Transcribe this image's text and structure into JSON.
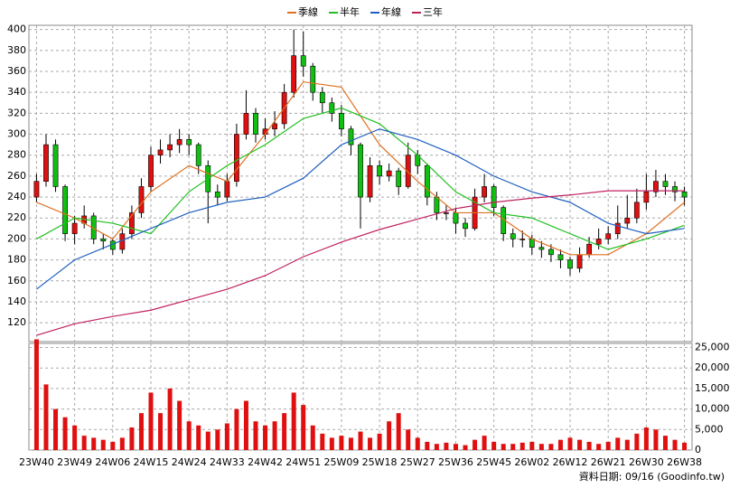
{
  "chart_data": [
    {
      "type": "candlestick",
      "xticks": [
        {
          "value": 0,
          "label": "23W40"
        },
        {
          "value": 4,
          "label": "23W49"
        },
        {
          "value": 8,
          "label": "24W06"
        },
        {
          "value": 12,
          "label": "24W15"
        },
        {
          "value": 16,
          "label": "24W24"
        },
        {
          "value": 20,
          "label": "24W33"
        },
        {
          "value": 24,
          "label": "24W42"
        },
        {
          "value": 28,
          "label": "24W51"
        },
        {
          "value": 32,
          "label": "25W09"
        },
        {
          "value": 36,
          "label": "25W18"
        },
        {
          "value": 40,
          "label": "25W27"
        },
        {
          "value": 44,
          "label": "25W36"
        },
        {
          "value": 48,
          "label": "25W45"
        },
        {
          "value": 52,
          "label": "26W02"
        },
        {
          "value": 56,
          "label": "26W12"
        },
        {
          "value": 60,
          "label": "26W21"
        },
        {
          "value": 64,
          "label": "26W30"
        },
        {
          "value": 68,
          "label": "26W38"
        }
      ],
      "xlim": [
        -0.8,
        68.8
      ],
      "ylim": [
        102,
        404
      ],
      "yticks": [
        120,
        140,
        160,
        180,
        200,
        220,
        240,
        260,
        280,
        300,
        320,
        340,
        360,
        380,
        400
      ],
      "grid": true,
      "up_color": "#e01010",
      "down_color": "#10c010",
      "open": [
        240,
        255,
        290,
        250,
        205,
        215,
        222,
        200,
        198,
        190,
        205,
        225,
        250,
        280,
        285,
        290,
        295,
        290,
        270,
        245,
        240,
        255,
        300,
        320,
        300,
        305,
        310,
        340,
        375,
        365,
        340,
        330,
        320,
        305,
        290,
        240,
        270,
        260,
        265,
        250,
        280,
        270,
        240,
        225,
        225,
        215,
        210,
        240,
        250,
        230,
        205,
        200,
        200,
        192,
        190,
        185,
        180,
        172,
        185,
        195,
        200,
        205,
        215,
        220,
        235,
        245,
        255,
        250,
        245
      ],
      "high": [
        262,
        300,
        295,
        252,
        222,
        232,
        225,
        205,
        200,
        210,
        232,
        258,
        288,
        295,
        300,
        305,
        300,
        292,
        275,
        252,
        262,
        310,
        342,
        325,
        315,
        322,
        348,
        400,
        398,
        368,
        345,
        335,
        328,
        308,
        292,
        278,
        275,
        272,
        268,
        292,
        285,
        272,
        245,
        232,
        230,
        220,
        248,
        262,
        252,
        232,
        210,
        208,
        204,
        198,
        195,
        190,
        183,
        192,
        202,
        210,
        212,
        232,
        242,
        248,
        262,
        266,
        262,
        255,
        250
      ],
      "low": [
        235,
        250,
        245,
        198,
        195,
        210,
        195,
        190,
        185,
        186,
        200,
        220,
        245,
        272,
        278,
        282,
        280,
        262,
        215,
        232,
        236,
        250,
        295,
        292,
        295,
        298,
        305,
        335,
        355,
        332,
        320,
        312,
        298,
        280,
        210,
        235,
        252,
        255,
        242,
        248,
        262,
        232,
        218,
        218,
        205,
        202,
        208,
        235,
        222,
        198,
        192,
        192,
        185,
        182,
        178,
        172,
        165,
        168,
        182,
        190,
        195,
        200,
        210,
        215,
        228,
        240,
        242,
        236,
        232
      ],
      "close": [
        255,
        290,
        250,
        205,
        215,
        222,
        200,
        198,
        190,
        205,
        225,
        250,
        280,
        285,
        290,
        295,
        290,
        270,
        245,
        240,
        255,
        300,
        320,
        300,
        305,
        310,
        340,
        375,
        365,
        340,
        330,
        320,
        305,
        290,
        240,
        270,
        260,
        265,
        250,
        280,
        270,
        240,
        225,
        225,
        215,
        210,
        240,
        250,
        230,
        205,
        200,
        200,
        192,
        190,
        185,
        180,
        172,
        185,
        195,
        200,
        205,
        215,
        220,
        235,
        245,
        255,
        250,
        245,
        240
      ],
      "series": [
        {
          "name": "季線",
          "color": "#e07020",
          "x": [
            0,
            4,
            8,
            12,
            16,
            20,
            24,
            28,
            32,
            36,
            40,
            44,
            48,
            52,
            56,
            60,
            64,
            68
          ],
          "values": [
            235,
            220,
            200,
            245,
            270,
            255,
            300,
            350,
            345,
            290,
            255,
            225,
            225,
            200,
            185,
            185,
            205,
            235
          ]
        },
        {
          "name": "半年",
          "color": "#20c020",
          "x": [
            0,
            4,
            8,
            12,
            16,
            20,
            24,
            28,
            32,
            36,
            40,
            44,
            48,
            52,
            56,
            60,
            64,
            68
          ],
          "values": [
            200,
            220,
            215,
            205,
            245,
            270,
            290,
            315,
            325,
            310,
            280,
            245,
            225,
            220,
            205,
            190,
            200,
            213
          ]
        },
        {
          "name": "年線",
          "color": "#2060c0",
          "x": [
            0,
            4,
            8,
            12,
            16,
            20,
            24,
            28,
            32,
            36,
            40,
            44,
            48,
            52,
            56,
            60,
            64,
            68
          ],
          "values": [
            152,
            180,
            195,
            210,
            225,
            235,
            240,
            258,
            290,
            305,
            295,
            280,
            260,
            245,
            235,
            215,
            205,
            210
          ]
        },
        {
          "name": "三年",
          "color": "#c02060",
          "x": [
            0,
            4,
            8,
            12,
            16,
            20,
            24,
            28,
            32,
            36,
            40,
            44,
            48,
            52,
            56,
            60,
            64,
            68
          ],
          "values": [
            108,
            119,
            126,
            132,
            142,
            152,
            165,
            183,
            197,
            209,
            219,
            229,
            235,
            239,
            242,
            246,
            246,
            246
          ]
        }
      ],
      "footer": "資料日期: 09/16 (Goodinfo.tw)"
    },
    {
      "type": "bar",
      "color": "#e01010",
      "ylim": [
        0,
        26000
      ],
      "yticks": [
        {
          "value": 0,
          "label": "0"
        },
        {
          "value": 5000,
          "label": "5,000"
        },
        {
          "value": 10000,
          "label": "10,000"
        },
        {
          "value": 15000,
          "label": "15,000"
        },
        {
          "value": 20000,
          "label": "20,000"
        },
        {
          "value": 25000,
          "label": "25,000"
        }
      ],
      "grid": true,
      "values": [
        27000,
        16000,
        10000,
        8000,
        6000,
        3500,
        3000,
        2500,
        2000,
        3000,
        5500,
        9000,
        14000,
        9000,
        15000,
        12000,
        7000,
        6000,
        4500,
        5000,
        6500,
        10000,
        12000,
        7000,
        6000,
        7000,
        9000,
        14000,
        11000,
        6000,
        4000,
        3000,
        3500,
        3000,
        4500,
        3000,
        4000,
        7000,
        9000,
        5000,
        3000,
        2000,
        1500,
        1800,
        1500,
        1200,
        2500,
        3500,
        2000,
        1500,
        1500,
        1800,
        2000,
        1500,
        1500,
        2500,
        3000,
        2500,
        2000,
        1500,
        2000,
        3000,
        2500,
        4000,
        5500,
        5000,
        3500,
        2500,
        1800
      ]
    }
  ]
}
